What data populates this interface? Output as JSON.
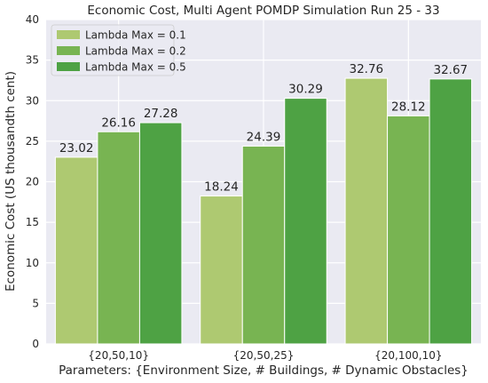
{
  "chart_data": {
    "type": "bar",
    "title": "Economic Cost, Multi Agent POMDP Simulation Run 25 - 33",
    "xlabel": "Parameters: {Environment Size, # Buildings, # Dynamic Obstacles}",
    "ylabel": "Economic Cost (US thousandth cent)",
    "categories": [
      "{20,50,10}",
      "{20,50,25}",
      "{20,100,10}"
    ],
    "series": [
      {
        "name": "Lambda Max = 0.1",
        "values": [
          23.02,
          18.24,
          32.76
        ],
        "value_labels": [
          "23.02",
          "18.24",
          "32.76"
        ],
        "color": "#aec971"
      },
      {
        "name": "Lambda Max = 0.2",
        "values": [
          26.16,
          24.39,
          28.12
        ],
        "value_labels": [
          "26.16",
          "24.39",
          "28.12"
        ],
        "color": "#78b452"
      },
      {
        "name": "Lambda Max = 0.5",
        "values": [
          27.28,
          30.29,
          32.67
        ],
        "value_labels": [
          "27.28",
          "30.29",
          "32.67"
        ],
        "color": "#4ea244"
      }
    ],
    "ylim": [
      0,
      40
    ],
    "yticks": [
      0,
      5,
      10,
      15,
      20,
      25,
      30,
      35,
      40
    ],
    "grid": true,
    "legend_position": "top-left",
    "background": "#eaeaf2"
  }
}
